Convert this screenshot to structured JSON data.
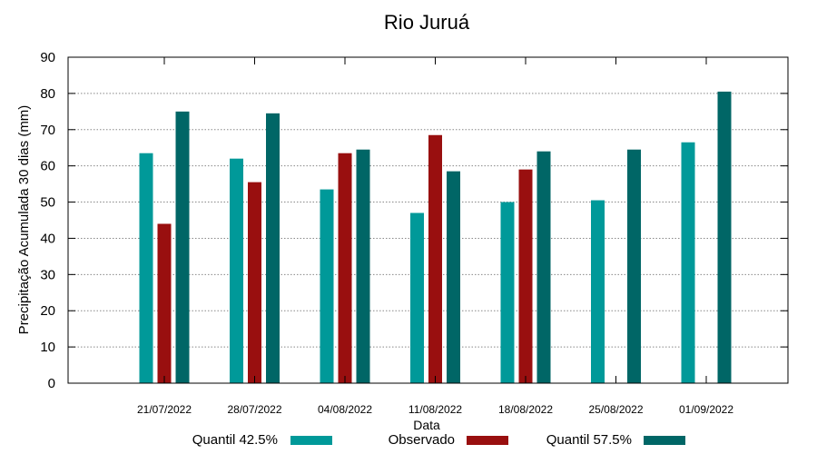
{
  "chart_data": {
    "type": "bar",
    "title": "Rio Juruá",
    "xlabel": "Data",
    "ylabel": "Precipitação Acumulada 30 dias (mm)",
    "ylim": [
      0,
      90
    ],
    "yticks": [
      0,
      10,
      20,
      30,
      40,
      50,
      60,
      70,
      80,
      90
    ],
    "grid": true,
    "legend_position": "bottom",
    "categories": [
      "21/07/2022",
      "28/07/2022",
      "04/08/2022",
      "11/08/2022",
      "18/08/2022",
      "25/08/2022",
      "01/09/2022"
    ],
    "series": [
      {
        "name": "Quantil 42.5%",
        "color": "#009999",
        "values": [
          63.5,
          62,
          53.5,
          47,
          50,
          50.5,
          66.5
        ]
      },
      {
        "name": "Observado",
        "color": "#990f0f",
        "values": [
          44,
          55.5,
          63.5,
          68.5,
          59,
          null,
          null
        ]
      },
      {
        "name": "Quantil 57.5%",
        "color": "#006666",
        "values": [
          75,
          74.5,
          64.5,
          58.5,
          64,
          64.5,
          80.5
        ]
      }
    ]
  }
}
